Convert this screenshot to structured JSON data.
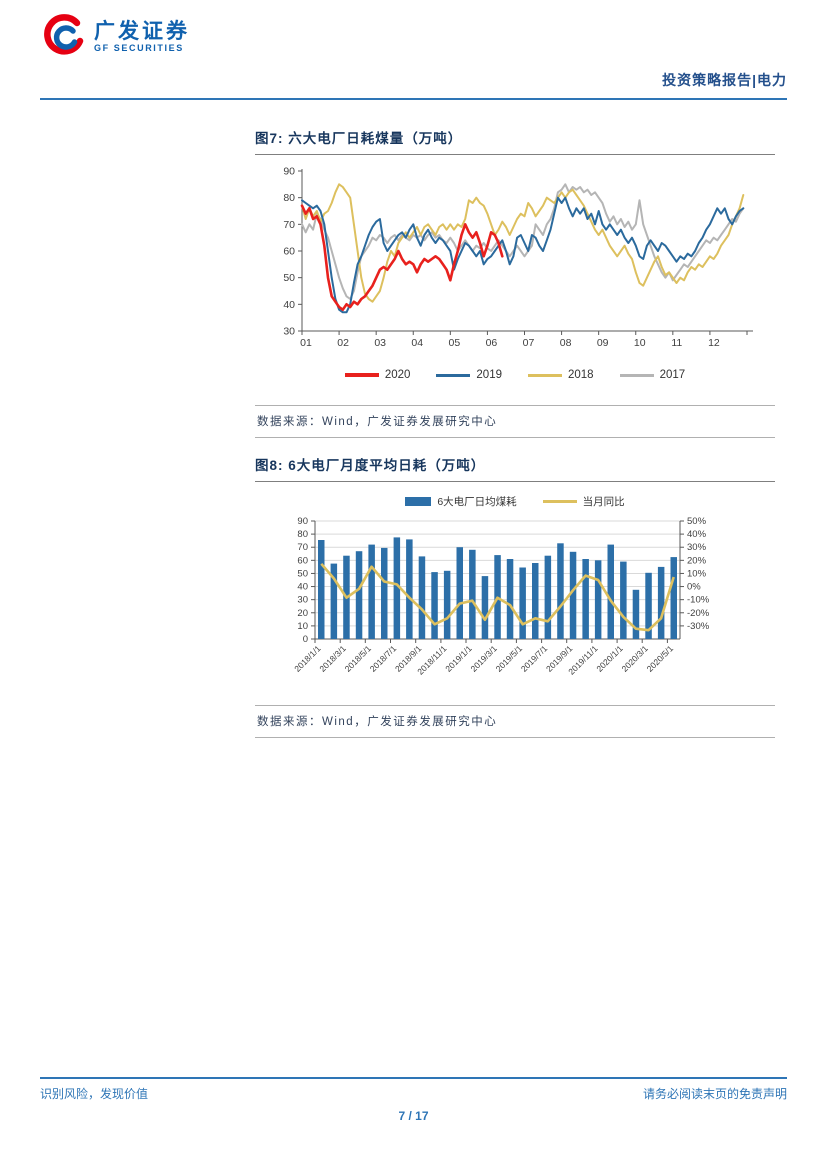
{
  "header": {
    "logo_cn": "广发证券",
    "logo_en": "GF SECURITIES",
    "report_label": "投资策略报告|电力"
  },
  "figure7": {
    "title": "图7:  六大电厂日耗煤量（万吨）",
    "source": "数据来源：Wind，广发证券发展研究中心"
  },
  "figure8": {
    "title": "图8:  6大电厂月度平均日耗（万吨）",
    "source": "数据来源：Wind，广发证券发展研究中心"
  },
  "footer": {
    "left": "识别风险，发现价值",
    "right": "请务必阅读末页的免责声明",
    "page": "7 / 17"
  },
  "colors": {
    "accent_blue": "#2e75b6",
    "title_navy": "#17365d",
    "logo_blue": "#1061ae",
    "logo_red": "#e60012",
    "axis": "#595959",
    "tick_text": "#404040",
    "grid": "#d9d9d9"
  },
  "chart_data": [
    {
      "type": "line",
      "title": "六大电厂日耗煤量（万吨）",
      "ylim": [
        30,
        90
      ],
      "yticks": [
        30,
        40,
        50,
        60,
        70,
        80,
        90
      ],
      "xticks": [
        "01",
        "02",
        "03",
        "04",
        "05",
        "06",
        "07",
        "08",
        "09",
        "10",
        "11",
        "12"
      ],
      "legend_position": "bottom",
      "series": [
        {
          "name": "2020",
          "color": "#e8211d",
          "width": 2.6,
          "x_start": 1.0,
          "x_step": 0.1,
          "values": [
            77,
            74,
            76,
            72,
            73,
            70,
            62,
            50,
            43,
            41,
            39,
            38,
            40,
            39,
            41,
            40,
            42,
            43,
            45,
            47,
            50,
            53,
            54,
            53,
            55,
            57,
            60,
            57,
            55,
            56,
            55,
            52,
            55,
            57,
            56,
            57,
            58,
            57,
            55,
            53,
            49,
            55,
            60,
            66,
            70,
            67,
            65,
            67,
            63,
            58,
            62,
            67,
            66,
            63,
            58
          ]
        },
        {
          "name": "2019",
          "color": "#2b6a9d",
          "width": 2,
          "x_start": 1.0,
          "x_step": 0.1,
          "values": [
            79,
            78,
            77,
            76,
            77,
            75,
            70,
            60,
            50,
            42,
            38,
            37,
            37,
            40,
            48,
            55,
            58,
            62,
            66,
            69,
            71,
            72,
            63,
            60,
            62,
            64,
            66,
            67,
            65,
            68,
            70,
            65,
            62,
            66,
            68,
            65,
            63,
            65,
            64,
            62,
            60,
            53,
            57,
            60,
            63,
            62,
            60,
            58,
            60,
            55,
            57,
            58,
            60,
            62,
            64,
            60,
            55,
            58,
            65,
            66,
            63,
            60,
            66,
            65,
            62,
            60,
            64,
            68,
            74,
            80,
            78,
            80,
            76,
            73,
            76,
            74,
            76,
            72,
            74,
            70,
            75,
            70,
            68,
            70,
            68,
            66,
            68,
            65,
            63,
            65,
            62,
            58,
            57,
            62,
            64,
            62,
            60,
            63,
            62,
            60,
            58,
            56,
            58,
            57,
            59,
            58,
            60,
            63,
            65,
            68,
            70,
            73,
            76,
            74,
            76,
            72,
            70,
            73,
            75,
            76
          ]
        },
        {
          "name": "2018",
          "color": "#ddc05e",
          "width": 2,
          "x_start": 1.0,
          "x_step": 0.1,
          "values": [
            77,
            72,
            76,
            73,
            75,
            71,
            74,
            75,
            78,
            82,
            85,
            84,
            82,
            80,
            70,
            60,
            50,
            44,
            42,
            41,
            43,
            45,
            50,
            56,
            60,
            58,
            63,
            65,
            67,
            65,
            67,
            69,
            66,
            69,
            70,
            68,
            66,
            69,
            70,
            68,
            70,
            68,
            70,
            69,
            72,
            79,
            78,
            80,
            78,
            77,
            74,
            70,
            66,
            68,
            71,
            69,
            66,
            69,
            72,
            74,
            73,
            78,
            76,
            73,
            75,
            77,
            80,
            79,
            78,
            80,
            82,
            80,
            82,
            83,
            81,
            79,
            77,
            74,
            71,
            68,
            66,
            68,
            65,
            62,
            60,
            58,
            60,
            62,
            59,
            57,
            52,
            48,
            47,
            50,
            53,
            56,
            58,
            54,
            51,
            52,
            50,
            48,
            50,
            49,
            52,
            54,
            53,
            55,
            54,
            56,
            58,
            57,
            59,
            62,
            64,
            66,
            70,
            73,
            76,
            81
          ]
        },
        {
          "name": "2017",
          "color": "#b5b5b5",
          "width": 2,
          "x_start": 1.0,
          "x_step": 0.1,
          "values": [
            70,
            67,
            70,
            68,
            74,
            72,
            68,
            65,
            60,
            55,
            50,
            46,
            43,
            42,
            45,
            52,
            58,
            60,
            62,
            65,
            64,
            66,
            65,
            63,
            65,
            66,
            64,
            66,
            65,
            64,
            66,
            65,
            66,
            64,
            66,
            67,
            65,
            66,
            64,
            63,
            65,
            63,
            60,
            62,
            64,
            62,
            60,
            62,
            61,
            63,
            61,
            60,
            62,
            64,
            62,
            60,
            58,
            60,
            62,
            60,
            58,
            60,
            62,
            70,
            68,
            66,
            70,
            72,
            76,
            82,
            83,
            85,
            82,
            84,
            83,
            84,
            82,
            83,
            81,
            82,
            80,
            78,
            74,
            71,
            73,
            70,
            72,
            69,
            71,
            68,
            70,
            79,
            70,
            66,
            62,
            58,
            55,
            52,
            50,
            52,
            49,
            51,
            53,
            55,
            54,
            56,
            58,
            60,
            62,
            64,
            63,
            65,
            64,
            66,
            68,
            70,
            72,
            71,
            74,
            76
          ]
        }
      ]
    },
    {
      "type": "bar",
      "title": "6大电厂月度平均日耗（万吨）",
      "categories": [
        "2018/1/1",
        "2018/2/1",
        "2018/3/1",
        "2018/4/1",
        "2018/5/1",
        "2018/6/1",
        "2018/7/1",
        "2018/8/1",
        "2018/9/1",
        "2018/10/1",
        "2018/11/1",
        "2018/12/1",
        "2019/1/1",
        "2019/2/1",
        "2019/3/1",
        "2019/4/1",
        "2019/5/1",
        "2019/6/1",
        "2019/7/1",
        "2019/8/1",
        "2019/9/1",
        "2019/10/1",
        "2019/11/1",
        "2019/12/1",
        "2020/1/1",
        "2020/2/1",
        "2020/3/1",
        "2020/4/1",
        "2020/5/1"
      ],
      "xtick_every": 2,
      "left_ylim": [
        0,
        90
      ],
      "left_yticks": [
        0,
        10,
        20,
        30,
        40,
        50,
        60,
        70,
        80,
        90
      ],
      "right_ylim": [
        -30,
        50
      ],
      "right_ytick_labels": [
        "50%",
        "40%",
        "30%",
        "20%",
        "10%",
        "0%",
        "-10%",
        "-20%",
        "-30%"
      ],
      "grid": true,
      "bar_series": {
        "name": "6大电厂日均煤耗",
        "color": "#2c6fa8",
        "values": [
          75.5,
          57.5,
          63.5,
          67,
          72,
          69.5,
          77.5,
          76,
          63,
          51,
          52,
          70,
          68,
          48,
          64,
          61,
          54.5,
          58,
          63.5,
          73,
          66.5,
          61,
          60,
          72,
          59,
          37.5,
          50.5,
          55,
          62.5
        ]
      },
      "line_series": {
        "name": "当月同比",
        "color": "#ddc05e",
        "axis": "right",
        "values_pct": [
          21,
          11,
          -2,
          4,
          19,
          9,
          7,
          -2,
          -10,
          -20,
          -16,
          -6,
          -4,
          -17,
          -2,
          -7,
          -20,
          -16,
          -18,
          -8,
          3,
          13,
          10,
          -4,
          -15,
          -23,
          -24,
          -16,
          12
        ]
      }
    }
  ]
}
